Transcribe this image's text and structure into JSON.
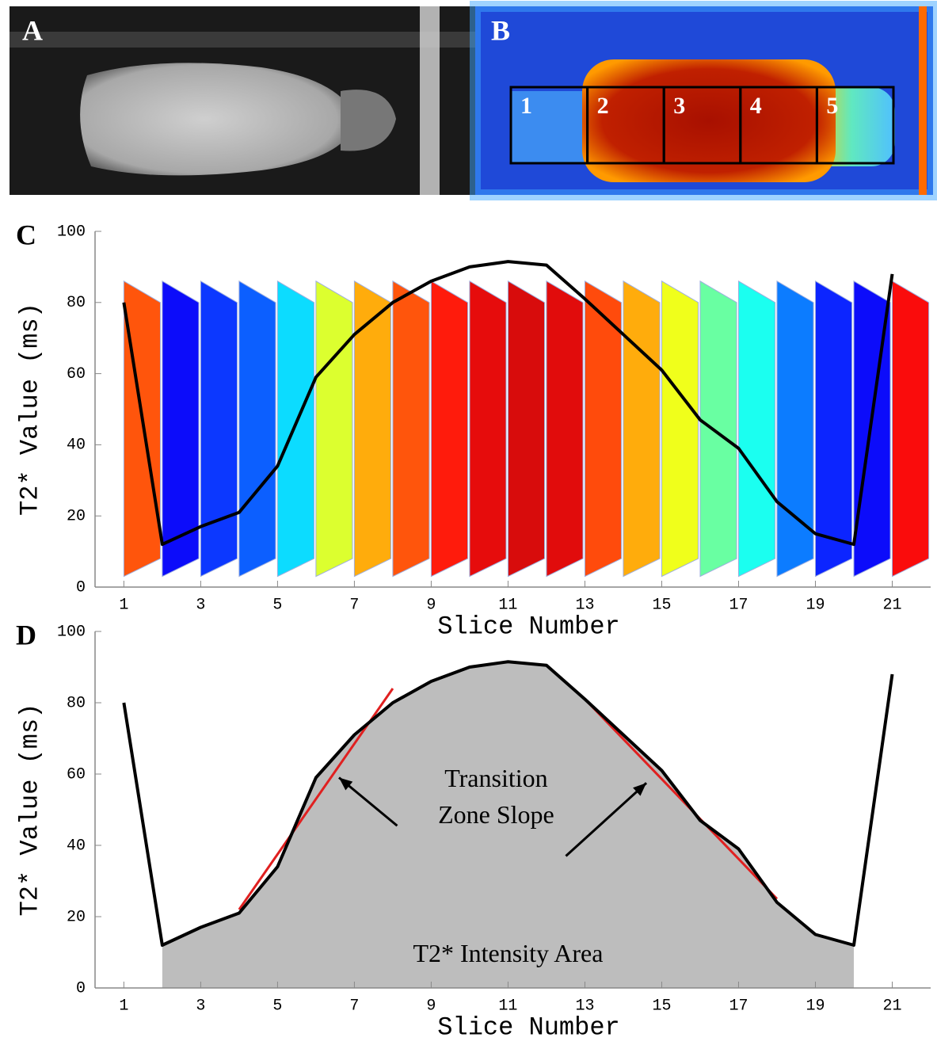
{
  "panels": {
    "a": {
      "label": "A"
    },
    "b": {
      "label": "B",
      "regions": [
        "1",
        "2",
        "3",
        "4",
        "5"
      ]
    }
  },
  "chart_data": [
    {
      "type": "line",
      "panel_label": "C",
      "x_label": "Slice Number",
      "y_label": "T2* Value (ms)",
      "x": [
        1,
        2,
        3,
        4,
        5,
        6,
        7,
        8,
        9,
        10,
        11,
        12,
        13,
        14,
        15,
        16,
        17,
        18,
        19,
        20,
        21
      ],
      "series": [
        {
          "color": "#000000",
          "values": [
            80,
            12,
            17,
            21,
            34,
            59,
            71,
            80,
            86,
            90,
            91.5,
            90.5,
            81,
            71,
            61,
            47,
            39,
            24,
            15,
            12,
            88
          ]
        }
      ],
      "xlim": [
        0.25,
        22
      ],
      "xticks": [
        1,
        3,
        5,
        7,
        9,
        11,
        13,
        15,
        17,
        19,
        21
      ],
      "ylim": [
        0,
        100
      ],
      "yticks": [
        0,
        20,
        40,
        60,
        80,
        100
      ],
      "background_slices": true
    },
    {
      "type": "line",
      "panel_label": "D",
      "x_label": "Slice Number",
      "y_label": "T2* Value (ms)",
      "x": [
        1,
        2,
        3,
        4,
        5,
        6,
        7,
        8,
        9,
        10,
        11,
        12,
        13,
        14,
        15,
        16,
        17,
        18,
        19,
        20,
        21
      ],
      "series": [
        {
          "color": "#000000",
          "values": [
            80,
            12,
            17,
            21,
            34,
            59,
            71,
            80,
            86,
            90,
            91.5,
            90.5,
            81,
            71,
            61,
            47,
            39,
            24,
            15,
            12,
            88
          ]
        }
      ],
      "xlim": [
        0.25,
        22
      ],
      "xticks": [
        1,
        3,
        5,
        7,
        9,
        11,
        13,
        15,
        17,
        19,
        21
      ],
      "ylim": [
        0,
        100
      ],
      "yticks": [
        0,
        20,
        40,
        60,
        80,
        100
      ],
      "area_x_range": [
        2,
        20
      ],
      "area_color": "#bdbdbd",
      "trend_lines": [
        {
          "color": "#e02020",
          "x": [
            4,
            8
          ],
          "y": [
            22,
            84
          ]
        },
        {
          "color": "#e02020",
          "x": [
            13,
            18
          ],
          "y": [
            81,
            25
          ]
        }
      ],
      "annotation_slope": [
        "Transition",
        "Zone Slope"
      ],
      "annotation_area": "T2* Intensity Area"
    }
  ]
}
